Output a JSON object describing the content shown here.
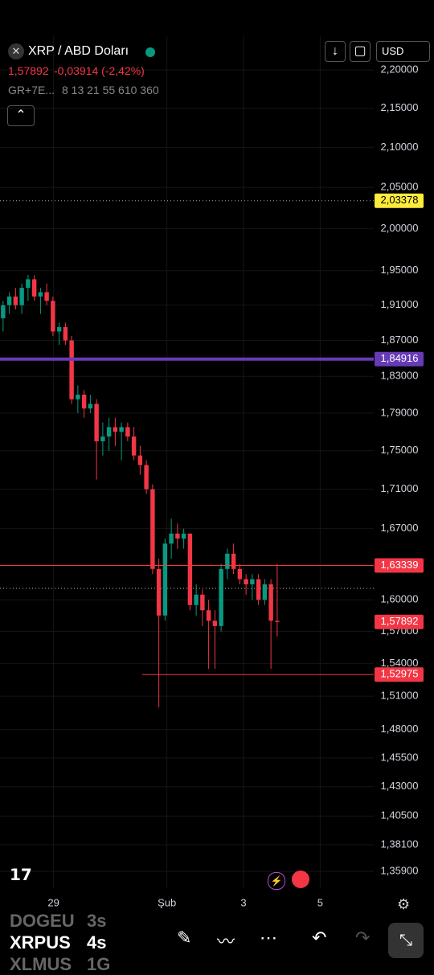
{
  "header": {
    "symbol": "XRP / ABD Doları",
    "price": "1,57892",
    "change": "-0,03914 (-2,42%)",
    "indicator": "GR+7E...",
    "indicator_params": "8 13 21 55 610 360",
    "currency": "USD"
  },
  "watchlist": [
    {
      "symbol": "DOGEU",
      "interval": "3s"
    },
    {
      "symbol": "XRPUS",
      "interval": "4s"
    },
    {
      "symbol": "XLMUS",
      "interval": "1G"
    }
  ],
  "chart_data": {
    "type": "candlestick",
    "log_scale": true,
    "up_color": "#089981",
    "down_color": "#f23645",
    "open": [
      1.895,
      1.91,
      1.92,
      1.91,
      1.93,
      1.94,
      1.92,
      1.925,
      1.915,
      1.88,
      1.885,
      1.87,
      1.805,
      1.81,
      1.795,
      1.8,
      1.76,
      1.765,
      1.775,
      1.77,
      1.775,
      1.765,
      1.745,
      1.735,
      1.71,
      1.63,
      1.585,
      1.655,
      1.665,
      1.66,
      1.665,
      1.595,
      1.605,
      1.59,
      1.58,
      1.575,
      1.63,
      1.645,
      1.63,
      1.62,
      1.615,
      1.62,
      1.6,
      1.615,
      1.58
    ],
    "high": [
      1.915,
      1.925,
      1.93,
      1.935,
      1.945,
      1.945,
      1.93,
      1.935,
      1.92,
      1.89,
      1.89,
      1.875,
      1.82,
      1.815,
      1.81,
      1.805,
      1.78,
      1.785,
      1.785,
      1.78,
      1.78,
      1.775,
      1.755,
      1.74,
      1.715,
      1.64,
      1.66,
      1.68,
      1.675,
      1.67,
      1.665,
      1.615,
      1.61,
      1.6,
      1.59,
      1.635,
      1.65,
      1.655,
      1.635,
      1.625,
      1.625,
      1.625,
      1.62,
      1.62,
      1.635
    ],
    "low": [
      1.88,
      1.9,
      1.905,
      1.9,
      1.915,
      1.915,
      1.9,
      1.91,
      1.875,
      1.865,
      1.865,
      1.8,
      1.79,
      1.785,
      1.79,
      1.72,
      1.745,
      1.75,
      1.755,
      1.74,
      1.76,
      1.74,
      1.725,
      1.705,
      1.625,
      1.5,
      1.58,
      1.64,
      1.65,
      1.65,
      1.59,
      1.585,
      1.575,
      1.535,
      1.535,
      1.57,
      1.62,
      1.625,
      1.615,
      1.605,
      1.6,
      1.595,
      1.595,
      1.535,
      1.565
    ],
    "close": [
      1.91,
      1.92,
      1.91,
      1.93,
      1.94,
      1.92,
      1.925,
      1.915,
      1.88,
      1.885,
      1.87,
      1.805,
      1.81,
      1.795,
      1.8,
      1.76,
      1.765,
      1.775,
      1.77,
      1.775,
      1.765,
      1.745,
      1.735,
      1.71,
      1.63,
      1.585,
      1.655,
      1.665,
      1.66,
      1.665,
      1.595,
      1.605,
      1.59,
      1.58,
      1.575,
      1.63,
      1.645,
      1.63,
      1.62,
      1.615,
      1.62,
      1.6,
      1.615,
      1.58,
      1.57892
    ],
    "xlim": [
      -0.5,
      59.5
    ],
    "xticks": [
      {
        "value": 8.1,
        "label": "29"
      },
      {
        "value": 26.3,
        "label": "Şub"
      },
      {
        "value": 38.6,
        "label": "3"
      },
      {
        "value": 50.9,
        "label": "5"
      }
    ],
    "ylim": [
      1.3454,
      2.2452
    ],
    "yticks": [
      {
        "value": 2.2,
        "label": "2,20000"
      },
      {
        "value": 2.15,
        "label": "2,15000"
      },
      {
        "value": 2.1,
        "label": "2,10000"
      },
      {
        "value": 2.05,
        "label": "2,05000"
      },
      {
        "value": 2.0,
        "label": "2,00000"
      },
      {
        "value": 1.95,
        "label": "1,95000"
      },
      {
        "value": 1.91,
        "label": "1,91000"
      },
      {
        "value": 1.87,
        "label": "1,87000"
      },
      {
        "value": 1.83,
        "label": "1,83000"
      },
      {
        "value": 1.79,
        "label": "1,79000"
      },
      {
        "value": 1.75,
        "label": "1,75000"
      },
      {
        "value": 1.71,
        "label": "1,71000"
      },
      {
        "value": 1.67,
        "label": "1,67000"
      },
      {
        "value": 1.6,
        "label": "1,60000"
      },
      {
        "value": 1.57,
        "label": "1,57000"
      },
      {
        "value": 1.54,
        "label": "1,54000"
      },
      {
        "value": 1.51,
        "label": "1,51000"
      },
      {
        "value": 1.48,
        "label": "1,48000"
      },
      {
        "value": 1.455,
        "label": "1,45500"
      },
      {
        "value": 1.43,
        "label": "1,43000"
      },
      {
        "value": 1.405,
        "label": "1,40500"
      },
      {
        "value": 1.381,
        "label": "1,38100"
      },
      {
        "value": 1.359,
        "label": "1,35900"
      }
    ],
    "price_lines": [
      {
        "value": 2.03378,
        "label": "2,03378",
        "color": "#ffeb3b",
        "style": "dotted"
      },
      {
        "value": 1.84916,
        "label": "1,84916",
        "color": "#673ab7",
        "style": "thick"
      },
      {
        "value": 1.63339,
        "label": "1,63339",
        "color": "#f23645",
        "style": "solid"
      },
      {
        "value": 1.57892,
        "label": "1,57892",
        "color": "#f23645",
        "style": "none"
      },
      {
        "value": 1.52975,
        "label": "1,52975",
        "color": "#f23645",
        "style": "solid"
      }
    ]
  }
}
